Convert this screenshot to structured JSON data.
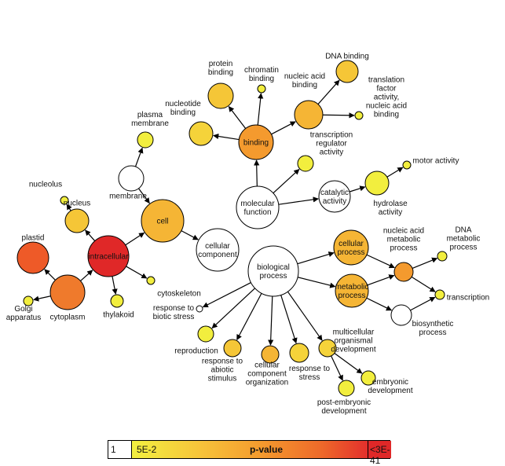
{
  "nodes": {
    "molecular_function": {
      "label": [
        "molecular",
        "function"
      ],
      "color": "#ffffff"
    },
    "biological_process": {
      "label": [
        "biological",
        "process"
      ],
      "color": "#ffffff"
    },
    "cellular_component": {
      "label": [
        "cellular",
        "component"
      ],
      "color": "#ffffff"
    },
    "binding": {
      "label": [
        "binding"
      ],
      "color": "#f49a2e"
    },
    "protein_binding": {
      "label": [
        "protein",
        "binding"
      ],
      "color": "#f5c637"
    },
    "chromatin_binding": {
      "label": [
        "chromatin",
        "binding"
      ],
      "color": "#f2ee3e"
    },
    "nucleic_acid_binding": {
      "label": [
        "nucleic acid",
        "binding"
      ],
      "color": "#f5b535"
    },
    "dna_binding": {
      "label": [
        "DNA binding"
      ],
      "color": "#f5c637"
    },
    "translation_factor": {
      "label": [
        "translation",
        "factor",
        "activity,",
        "nucleic acid",
        "binding"
      ],
      "color": "#f2ee3e"
    },
    "nucleotide_binding": {
      "label": [
        "nucleotide",
        "binding"
      ],
      "color": "#f5d33a"
    },
    "transcription_regulator": {
      "label": [
        "transcription",
        "regulator",
        "activity"
      ],
      "color": "#f2ee3e"
    },
    "catalytic_activity": {
      "label": [
        "catalytic",
        "activity"
      ],
      "color": "#ffffff"
    },
    "hydrolase_activity": {
      "label": [
        "hydrolase",
        "activity"
      ],
      "color": "#f2ee3e"
    },
    "motor_activity": {
      "label": [
        "motor activity"
      ],
      "color": "#f2ee3e"
    },
    "cell": {
      "label": [
        "cell"
      ],
      "color": "#f5b535"
    },
    "membrane": {
      "label": [
        "membrane"
      ],
      "color": "#ffffff"
    },
    "plasma_membrane": {
      "label": [
        "plasma",
        "membrane"
      ],
      "color": "#f2ee3e"
    },
    "nucleolus": {
      "label": [
        "nucleolus"
      ],
      "color": "#f2ee3e"
    },
    "nucleus": {
      "label": [
        "nucleus"
      ],
      "color": "#f5c637"
    },
    "intracellular": {
      "label": [
        "intracellular"
      ],
      "color": "#e02828"
    },
    "plastid": {
      "label": [
        "plastid"
      ],
      "color": "#ee5a28"
    },
    "cytoplasm": {
      "label": [
        "cytoplasm"
      ],
      "color": "#ef7a2c"
    },
    "golgi": {
      "label": [
        "Golgi",
        "apparatus"
      ],
      "color": "#f2ee3e"
    },
    "thylakoid": {
      "label": [
        "thylakoid"
      ],
      "color": "#f2ee3e"
    },
    "cytoskeleton": {
      "label": [
        "cytoskeleton"
      ],
      "color": "#f2ee3e"
    },
    "cellular_process": {
      "label": [
        "cellular",
        "process"
      ],
      "color": "#f5b535"
    },
    "metabolic_process": {
      "label": [
        "metabolic",
        "process"
      ],
      "color": "#f5b535"
    },
    "nucleic_acid_metabolic": {
      "label": [
        "nucleic acid",
        "metabolic",
        "process"
      ],
      "color": "#f49a2e"
    },
    "dna_metabolic": {
      "label": [
        "DNA",
        "metabolic",
        "process"
      ],
      "color": "#f2ee3e"
    },
    "transcription": {
      "label": [
        "transcription"
      ],
      "color": "#f2ee3e"
    },
    "biosynthetic_process": {
      "label": [
        "biosynthetic",
        "process"
      ],
      "color": "#ffffff"
    },
    "response_biotic": {
      "label": [
        "response to",
        "biotic stress"
      ],
      "color": "#ffffff"
    },
    "reproduction": {
      "label": [
        "reproduction"
      ],
      "color": "#f2ee3e"
    },
    "response_abiotic": {
      "label": [
        "response to",
        "abiotic",
        "stimulus"
      ],
      "color": "#f5c637"
    },
    "cellular_component_org": {
      "label": [
        "cellular",
        "component",
        "organization"
      ],
      "color": "#f5b535"
    },
    "response_stress": {
      "label": [
        "response to",
        "stress"
      ],
      "color": "#f5d33a"
    },
    "multicellular_dev": {
      "label": [
        "multicellular",
        "organismal",
        "development"
      ],
      "color": "#f5d33a"
    },
    "embryonic_dev": {
      "label": [
        "embryonic",
        "development"
      ],
      "color": "#f2ee3e"
    },
    "post_embryonic_dev": {
      "label": [
        "post-embryonic",
        "development"
      ],
      "color": "#f2ee3e"
    }
  },
  "legend": {
    "left_value": "1",
    "start_value": "5E-2",
    "title": "p-value",
    "end_value": "<3E-41",
    "colors": {
      "white": "#ffffff",
      "low": "#f2f040",
      "high": "#e02828"
    }
  }
}
